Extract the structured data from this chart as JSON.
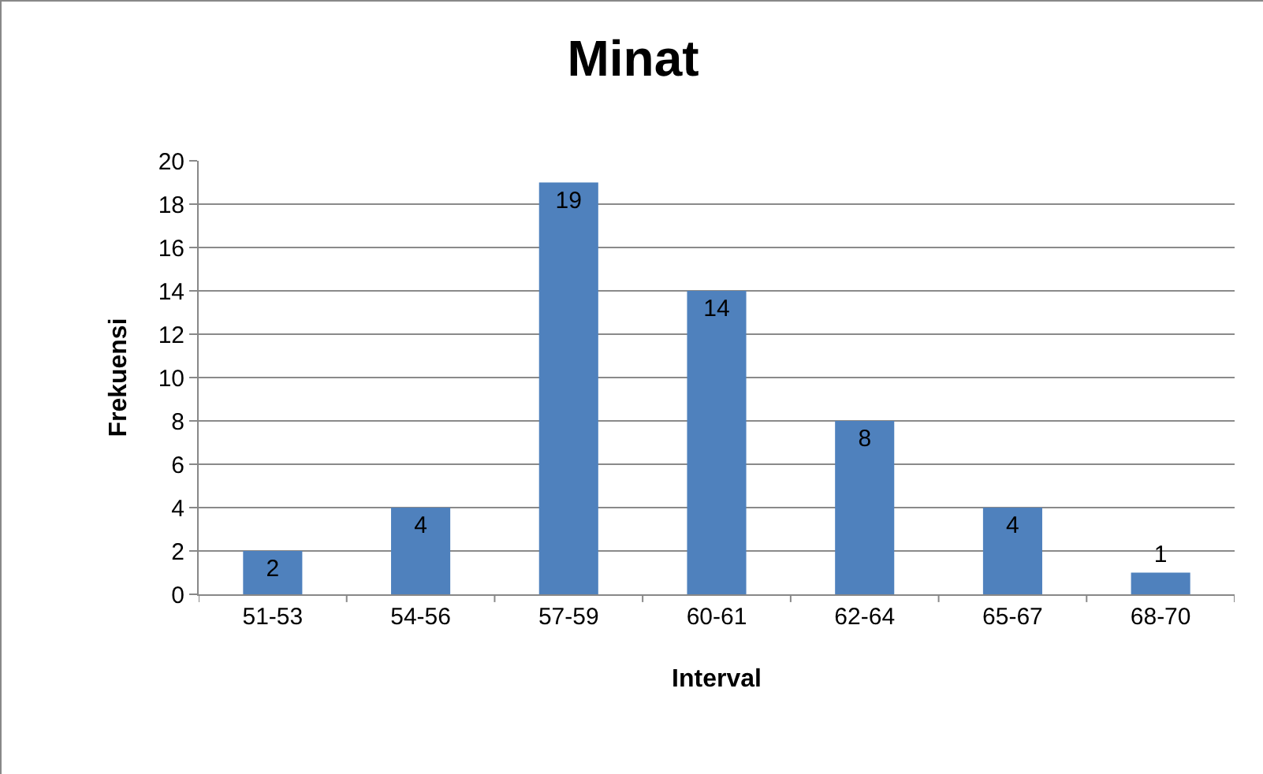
{
  "chart_data": {
    "type": "bar",
    "title": "Minat",
    "xlabel": "Interval",
    "ylabel": "Frekuensi",
    "categories": [
      "51-53",
      "54-56",
      "57-59",
      "60-61",
      "62-64",
      "65-67",
      "68-70"
    ],
    "values": [
      2,
      4,
      19,
      14,
      8,
      4,
      1
    ],
    "color": "#4f81bd",
    "ylim": [
      0,
      20
    ],
    "yticks": [
      0,
      2,
      4,
      6,
      8,
      10,
      12,
      14,
      16,
      18,
      20
    ],
    "grid": "y",
    "data_labels": true,
    "legend": false
  }
}
